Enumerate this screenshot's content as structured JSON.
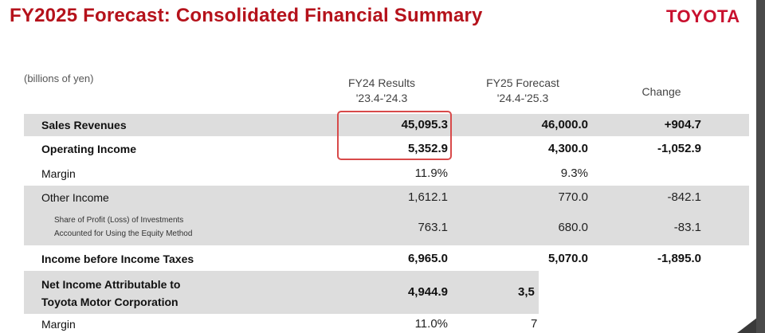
{
  "header": {
    "title": "FY2025 Forecast: Consolidated Financial Summary",
    "brand": "TOYOTA"
  },
  "units": "(billions of yen)",
  "columns": {
    "fy24": {
      "line1": "FY24 Results",
      "line2": "'23.4-'24.3"
    },
    "fy25": {
      "line1": "FY25 Forecast",
      "line2": "'24.4-'25.3"
    },
    "change": "Change"
  },
  "rows": [
    {
      "label": "Sales Revenues",
      "fy24": "45,095.3",
      "fy25": "46,000.0",
      "change": "+904.7"
    },
    {
      "label": "Operating Income",
      "fy24": "5,352.9",
      "fy25": "4,300.0",
      "change": "-1,052.9"
    },
    {
      "label": "Margin",
      "fy24": "11.9%",
      "fy25": "9.3%",
      "change": ""
    },
    {
      "label": "Other Income",
      "fy24": "1,612.1",
      "fy25": "770.0",
      "change": "-842.1"
    },
    {
      "label_line1": "Share of Profit (Loss) of Investments",
      "label_line2": "Accounted for Using the Equity Method",
      "fy24": "763.1",
      "fy25": "680.0",
      "change": "-83.1"
    },
    {
      "label": "Income before Income Taxes",
      "fy24": "6,965.0",
      "fy25": "5,070.0",
      "change": "-1,895.0"
    },
    {
      "label_line1": "Net Income Attributable to",
      "label_line2": "Toyota Motor Corporation",
      "fy24": "4,944.9",
      "fy25": "3,5"
    },
    {
      "label": "Margin",
      "fy24": "11.0%",
      "fy25": "7"
    }
  ],
  "colors": {
    "title": "#b5121b",
    "brand": "#c8102e",
    "shade": "#dddddd",
    "highlight": "#d84a4a"
  }
}
